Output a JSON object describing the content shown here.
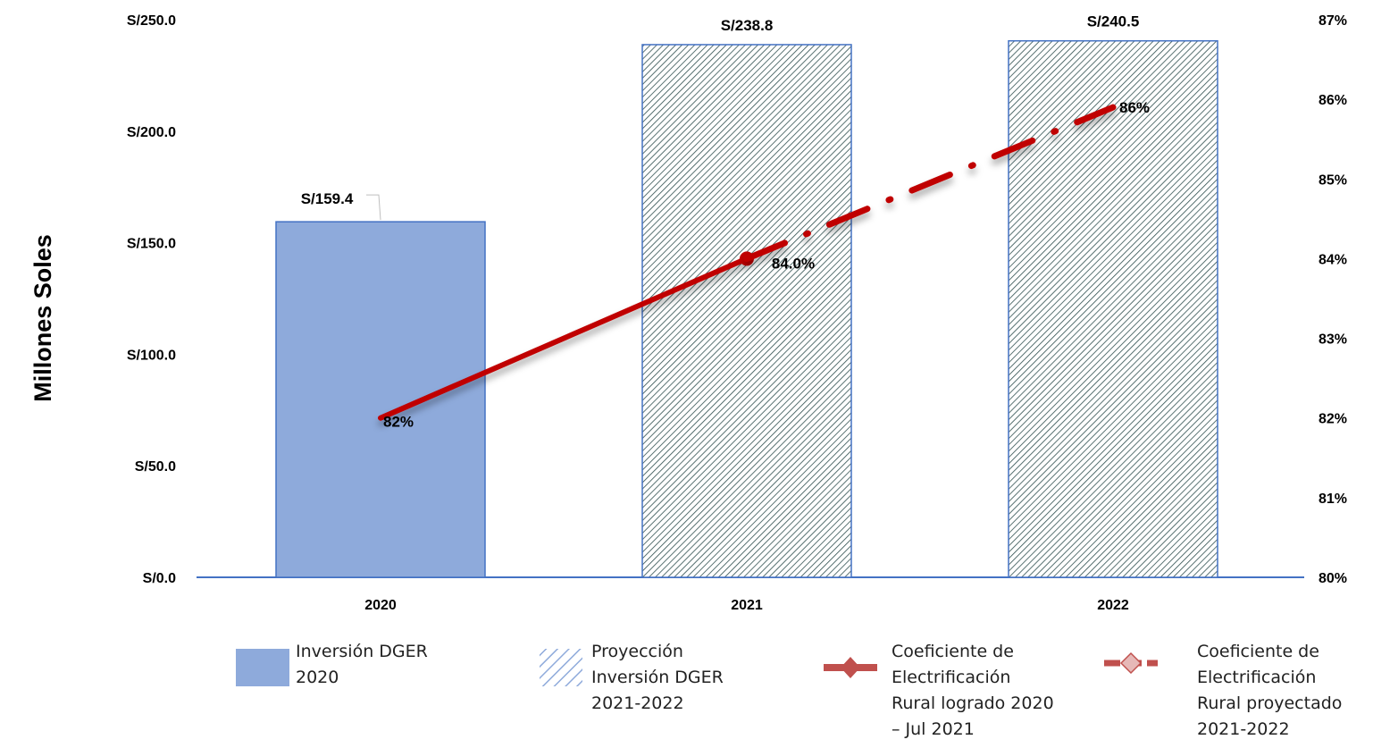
{
  "chart_data": {
    "type": "bar",
    "ylabel": "Millones Soles",
    "categories": [
      "2020",
      "2021",
      "2022"
    ],
    "ylim": [
      0,
      250
    ],
    "y2lim": [
      80,
      87
    ],
    "y_ticks": [
      "S/0.0",
      "S/50.0",
      "S/100.0",
      "S/150.0",
      "S/200.0",
      "S/250.0"
    ],
    "y2_ticks": [
      "80%",
      "81%",
      "82%",
      "83%",
      "84%",
      "85%",
      "86%",
      "87%"
    ],
    "grid": false,
    "legend_position": "bottom",
    "series": [
      {
        "name": "Inversión DGER 2020",
        "type": "bar",
        "axis": "left",
        "style": "solid",
        "color": "#8eaadb",
        "values": [
          159.4,
          null,
          null
        ],
        "labels": [
          "S/159.4",
          "",
          ""
        ]
      },
      {
        "name": "Proyección Inversión DGER 2021-2022",
        "type": "bar",
        "axis": "left",
        "style": "hatched",
        "color": "#4472c4",
        "values": [
          null,
          238.8,
          240.5
        ],
        "labels": [
          "",
          "S/238.8",
          "S/240.5"
        ]
      },
      {
        "name": "Coeficiente de Electrificación Rural logrado 2020 – Jul 2021",
        "type": "line",
        "axis": "right",
        "style": "solid",
        "color": "#c00000",
        "x": [
          0,
          1
        ],
        "values": [
          82,
          84
        ],
        "labels": [
          "82%",
          "84.0%"
        ]
      },
      {
        "name": "Coeficiente de Electrificación Rural proyectado 2021-2022",
        "type": "line",
        "axis": "right",
        "style": "dash-dot",
        "color": "#c00000",
        "x": [
          1,
          2
        ],
        "values": [
          84,
          85.9
        ],
        "labels": [
          "",
          "86%"
        ]
      }
    ],
    "legend": [
      {
        "key": "bar-solid",
        "lines": [
          "Inversión DGER",
          "2020"
        ]
      },
      {
        "key": "bar-hatched",
        "lines": [
          "Proyección",
          "Inversión DGER",
          "2021-2022"
        ]
      },
      {
        "key": "line-solid",
        "lines": [
          "Coeficiente de",
          "Electrificación",
          "Rural logrado 2020",
          "– Jul 2021"
        ]
      },
      {
        "key": "line-dashed",
        "lines": [
          "Coeficiente de",
          "Electrificación",
          "Rural proyectado",
          "2021-2022"
        ]
      }
    ]
  }
}
